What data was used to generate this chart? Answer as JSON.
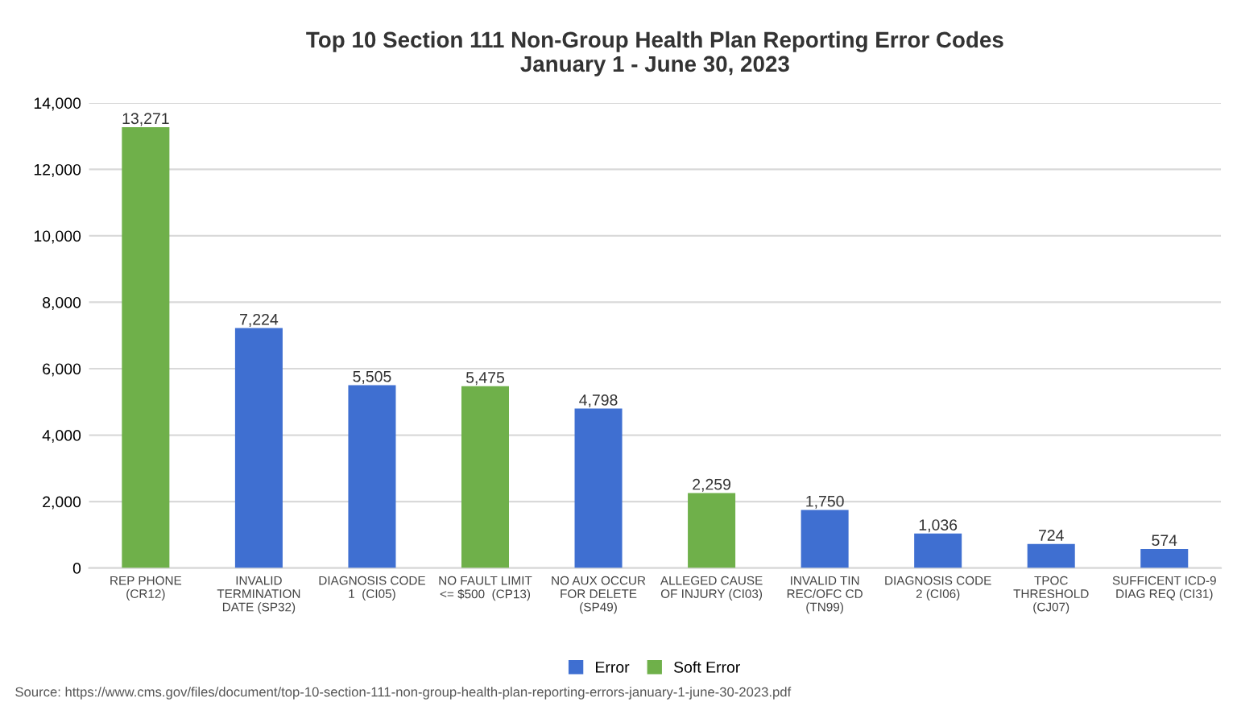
{
  "chart_data": {
    "type": "bar",
    "title": "Top 10 Section 111 Non-Group Health Plan Reporting Error Codes\nJanuary 1 - June 30, 2023",
    "categories": [
      "REP PHONE\n(CR12)",
      "INVALID\nTERMINATION\nDATE (SP32)",
      "DIAGNOSIS CODE\n1  (CI05)",
      "NO FAULT LIMIT\n<= $500  (CP13)",
      "NO AUX OCCUR\nFOR DELETE\n(SP49)",
      "ALLEGED CAUSE\nOF INJURY (CI03)",
      "INVALID TIN\nREC/OFC CD\n(TN99)",
      "DIAGNOSIS CODE\n2 (CI06)",
      "TPOC\nTHRESHOLD\n(CJ07)",
      "SUFFICENT ICD-9\nDIAG REQ (CI31)"
    ],
    "series": [
      {
        "name": "Error",
        "color": "#3f6fd1",
        "values": [
          null,
          7224,
          5505,
          null,
          4798,
          null,
          1750,
          1036,
          724,
          574
        ]
      },
      {
        "name": "Soft Error",
        "color": "#6fb04a",
        "values": [
          13271,
          null,
          null,
          5475,
          null,
          2259,
          null,
          null,
          null,
          null
        ]
      }
    ],
    "value_labels": [
      "13,271",
      "7,224",
      "5,505",
      "5,475",
      "4,798",
      "2,259",
      "1,750",
      "1,036",
      "724",
      "574"
    ],
    "ylim": [
      0,
      14000
    ],
    "yticks": [
      {
        "value": 0,
        "label": "0"
      },
      {
        "value": 2000,
        "label": "2,000"
      },
      {
        "value": 4000,
        "label": "4,000"
      },
      {
        "value": 6000,
        "label": "6,000"
      },
      {
        "value": 8000,
        "label": "8,000"
      },
      {
        "value": 10000,
        "label": "10,000"
      },
      {
        "value": 12000,
        "label": "12,000"
      },
      {
        "value": 14000,
        "label": "14,000"
      }
    ],
    "grid": "y",
    "legend": "bottom",
    "annotations": [
      "Source: https://www.cms.gov/files/document/top-10-section-111-non-group-health-plan-reporting-errors-january-1-june-30-2023.pdf"
    ]
  }
}
